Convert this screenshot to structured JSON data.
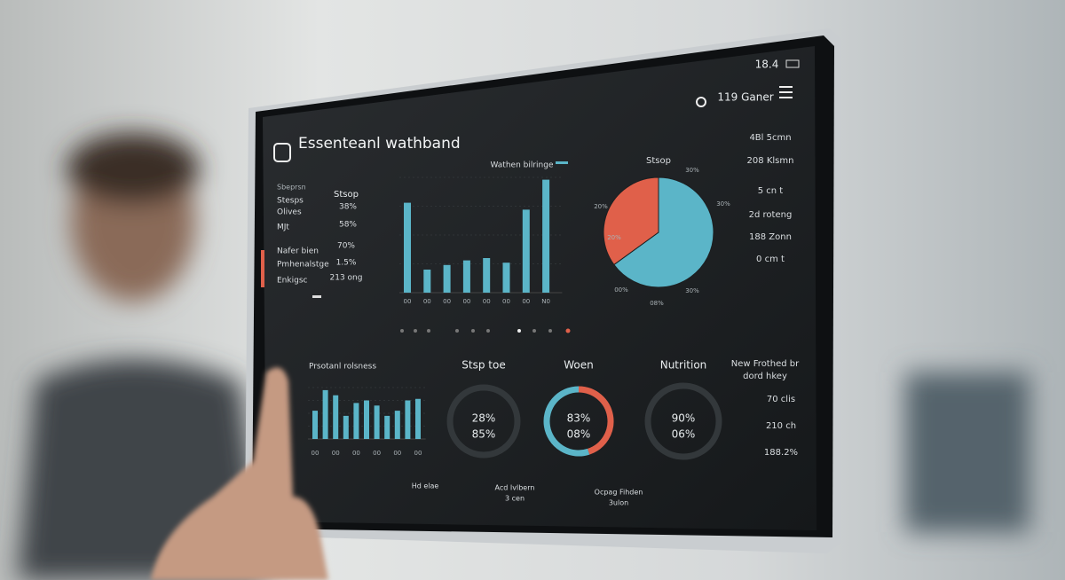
{
  "status_bar": {
    "time": "18.4",
    "user": "119 Ganer"
  },
  "header": {
    "title": "Essenteanl wathband"
  },
  "stats": {
    "heading": "Sbeprsn",
    "column": "Stsop",
    "rows": [
      {
        "label": "Stesps",
        "value": "38%"
      },
      {
        "label": "Olives",
        "value": "58%"
      },
      {
        "label": "MJt"
      }
    ],
    "highlight": [
      {
        "label": "Nafer bien",
        "value": "70%"
      },
      {
        "label": "Pmhenalstge",
        "value": "1.5%"
      },
      {
        "label": "Enkigsc",
        "value": "213 ong"
      }
    ]
  },
  "chart_data": [
    {
      "type": "bar",
      "title": "Wathen bilringe",
      "categories": [
        "00",
        "00",
        "00",
        "00",
        "00",
        "00",
        "00",
        "N0"
      ],
      "values": [
        78,
        20,
        24,
        28,
        30,
        26,
        72,
        98
      ],
      "ylim": [
        0,
        100
      ],
      "color": "#5bb5c8"
    },
    {
      "type": "pie",
      "title": "Stsop",
      "values": [
        65,
        35
      ],
      "colors": [
        "#5bb5c8",
        "#e0604a"
      ],
      "annotations": [
        "30%",
        "20%",
        "30%",
        "20%",
        "00%",
        "30%",
        "08%"
      ]
    },
    {
      "type": "bar",
      "title": "Prsotanl rolsness",
      "categories": [
        "00",
        null,
        "00",
        null,
        "00",
        null,
        "00",
        null,
        "00",
        null,
        "00"
      ],
      "values": [
        55,
        95,
        85,
        45,
        70,
        75,
        65,
        45,
        55,
        75,
        78
      ],
      "ylim": [
        0,
        100
      ],
      "color": "#5bb5c8"
    }
  ],
  "rings": [
    {
      "title": "Stsp toe",
      "center": [
        "28%",
        "85%"
      ]
    },
    {
      "title": "Woen",
      "center": [
        "83%",
        "08%"
      ],
      "values": [
        45,
        55
      ],
      "colors": [
        "#e0604a",
        "#5bb5c8"
      ]
    },
    {
      "title": "Nutrition",
      "center": [
        "90%",
        "06%"
      ]
    }
  ],
  "metrics": [
    "4Bl 5cmn",
    "208 Klsmn",
    "5 cn t",
    "2d roteng",
    "188 Zonn",
    "0 cm t"
  ],
  "side_notes": {
    "title": [
      "New Frothed br",
      "dord hkey"
    ],
    "items": [
      "70 clis",
      "210 ch",
      "188.2%"
    ]
  },
  "footer": [
    [
      "Hd elae"
    ],
    [
      "Acd Ivlbern",
      "3 cen"
    ],
    [
      "Ocpag Fihden",
      "3ulon"
    ]
  ]
}
